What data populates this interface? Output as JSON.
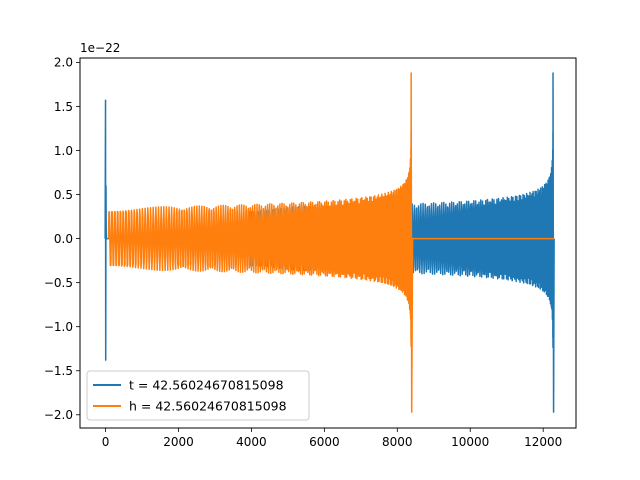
{
  "chart_data": {
    "type": "line",
    "title": "",
    "xlabel": "",
    "ylabel": "",
    "y_scale_label": "1e−22",
    "xlim": [
      -700,
      12900
    ],
    "ylim": [
      -2.15,
      2.05
    ],
    "x_ticks": [
      0,
      2000,
      4000,
      6000,
      8000,
      10000,
      12000
    ],
    "y_ticks": [
      -2.0,
      -1.5,
      -1.0,
      -0.5,
      0.0,
      0.5,
      1.0,
      1.5,
      2.0
    ],
    "x_tick_labels": [
      "0",
      "2000",
      "4000",
      "6000",
      "8000",
      "10000",
      "12000"
    ],
    "y_tick_labels": [
      "−2.0",
      "−1.5",
      "−1.0",
      "−0.5",
      "0.0",
      "0.5",
      "1.0",
      "1.5",
      "2.0"
    ],
    "grid": false,
    "legend_position": "lower-left",
    "series": [
      {
        "name": "t = 42.56024670815098",
        "color": "#1f77b4",
        "description": "initial spike near x=0 (+1.57/-1.38), flat near 0 until ~3900, chirp oscillation amplitude ~0.35 growing to 1.88/-1.97 peak at ~12270, ending ~12300",
        "start_spike": {
          "x": 0,
          "max": 1.57,
          "min": -1.38
        },
        "flat_until": 3900,
        "oscillation_start_amplitude": 0.35,
        "peak": {
          "x": 12270,
          "max": 1.88,
          "min": -1.97
        },
        "end_x": 12300
      },
      {
        "name": "h = 42.56024670815098",
        "color": "#ff7f0e",
        "description": "chirp oscillation from ~80 amplitude ~0.35 growing to 1.88/-1.97 peak at ~8380, then flat near 0 until ~12300",
        "oscillation_start_x": 80,
        "oscillation_start_amplitude": 0.35,
        "peak": {
          "x": 8380,
          "max": 1.88,
          "min": -1.97
        },
        "end_x": 12300
      }
    ]
  }
}
